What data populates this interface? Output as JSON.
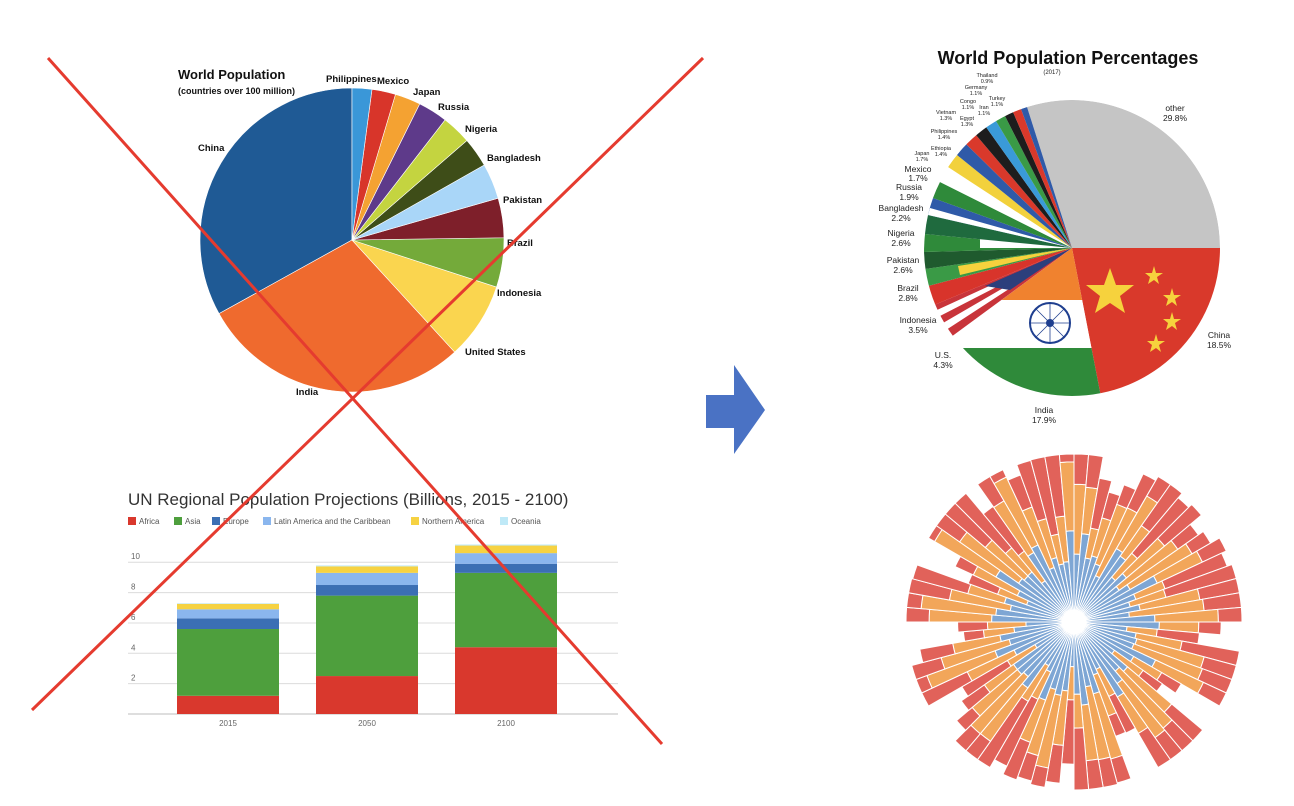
{
  "colors": {
    "cross": "#e53b2f",
    "arrow": "#4a72c4",
    "flag_red": "#d9392b",
    "flag_yellow": "#f2d13c",
    "flag_green": "#2f8a3a",
    "flag_orange": "#f0822f",
    "flag_blue": "#2f5aa8",
    "gray": "#c5c5c5",
    "radial_red": "#e1625a",
    "radial_orange": "#f2a65a",
    "radial_blue": "#7ea6d4"
  },
  "chart_data": [
    {
      "type": "pie",
      "title": "World Population",
      "subtitle": "(countries over 100 million)",
      "categories": [
        "China",
        "India",
        "United States",
        "Indonesia",
        "Brazil",
        "Pakistan",
        "Bangladesh",
        "Nigeria",
        "Russia",
        "Japan",
        "Mexico",
        "Philippines"
      ],
      "values": [
        31.5,
        27.4,
        7.8,
        5.0,
        4.0,
        3.6,
        3.0,
        3.0,
        3.0,
        2.6,
        2.4,
        2.0
      ],
      "colors": [
        "#1f5a95",
        "#ef6a2e",
        "#fad54f",
        "#74aa3a",
        "#7e1f2a",
        "#a9d6f8",
        "#3e4d18",
        "#c4d440",
        "#5e3a8a",
        "#f4a232",
        "#d8352a",
        "#3a97d8"
      ],
      "crossed_out": true
    },
    {
      "type": "bar",
      "stacked": true,
      "title": "UN Regional Population Projections (Billions, 2015 - 2100)",
      "categories": [
        "2015",
        "2050",
        "2100"
      ],
      "series": [
        {
          "name": "Africa",
          "color": "#d9382d",
          "values": [
            1.2,
            2.5,
            4.4
          ]
        },
        {
          "name": "Asia",
          "color": "#4e9f3d",
          "values": [
            4.4,
            5.3,
            4.9
          ]
        },
        {
          "name": "Europe",
          "color": "#3b6fb4",
          "values": [
            0.7,
            0.7,
            0.6
          ]
        },
        {
          "name": "Latin America and the Caribbean",
          "color": "#8ab6ee",
          "values": [
            0.6,
            0.8,
            0.7
          ]
        },
        {
          "name": "Northern America",
          "color": "#f6d242",
          "values": [
            0.36,
            0.43,
            0.5
          ]
        },
        {
          "name": "Oceania",
          "color": "#bfe9f7",
          "values": [
            0.04,
            0.06,
            0.07
          ]
        }
      ],
      "yticks": [
        "2",
        "4",
        "6",
        "8",
        "10"
      ],
      "ylim": [
        0,
        11.4
      ],
      "grid": true,
      "legend": "top",
      "crossed_out": true
    },
    {
      "type": "pie",
      "title": "World Population Percentages",
      "subtitle": "(2017)",
      "categories": [
        "other",
        "China",
        "India",
        "U.S.",
        "Indonesia",
        "Brazil",
        "Pakistan",
        "Nigeria",
        "Bangladesh",
        "Russia",
        "Mexico",
        "Japan",
        "Ethiopia",
        "Philippines",
        "Vietnam",
        "Egypt",
        "Congo",
        "Iran",
        "Germany",
        "Turkey",
        "Thailand"
      ],
      "values": [
        29.8,
        18.5,
        17.9,
        4.3,
        3.5,
        2.8,
        2.6,
        2.6,
        2.2,
        1.9,
        1.7,
        1.7,
        1.4,
        1.4,
        1.3,
        1.3,
        1.1,
        1.1,
        1.1,
        1.1,
        0.9
      ],
      "labels": {
        "other": [
          "other",
          "29.8%"
        ],
        "china": [
          "China",
          "18.5%"
        ],
        "india": [
          "India",
          "17.9%"
        ],
        "us": [
          "U.S.",
          "4.3%"
        ],
        "indonesia": [
          "Indonesia",
          "3.5%"
        ],
        "brazil": [
          "Brazil",
          "2.8%"
        ],
        "pakistan": [
          "Pakistan",
          "2.6%"
        ],
        "nigeria": [
          "Nigeria",
          "2.6%"
        ],
        "bangladesh": [
          "Bangladesh",
          "2.2%"
        ],
        "russia": [
          "Russia",
          "1.9%"
        ],
        "mexico": [
          "Mexico",
          "1.7%"
        ],
        "japan": [
          "Japan",
          "1.7%"
        ],
        "ethiopia": [
          "Ethiopia",
          "1.4%"
        ],
        "philippines": [
          "Philippines",
          "1.4%"
        ],
        "vietnam": [
          "Vietnam",
          "1.3%"
        ],
        "egypt": [
          "Egypt",
          "1.3%"
        ],
        "congo": [
          "Congo",
          "1.1%"
        ],
        "iran": [
          "Iran",
          "1.1%"
        ],
        "germany": [
          "Germany",
          "1.1%"
        ],
        "turkey": [
          "Turkey",
          "1.1%"
        ],
        "thailand": [
          "Thailand",
          "0.9%"
        ]
      },
      "fill": "national flags"
    },
    {
      "type": "radial-stacked-bar",
      "bar_count": 72,
      "series_colors": [
        "#7ea6d4",
        "#f2a65a",
        "#e1625a"
      ]
    }
  ]
}
